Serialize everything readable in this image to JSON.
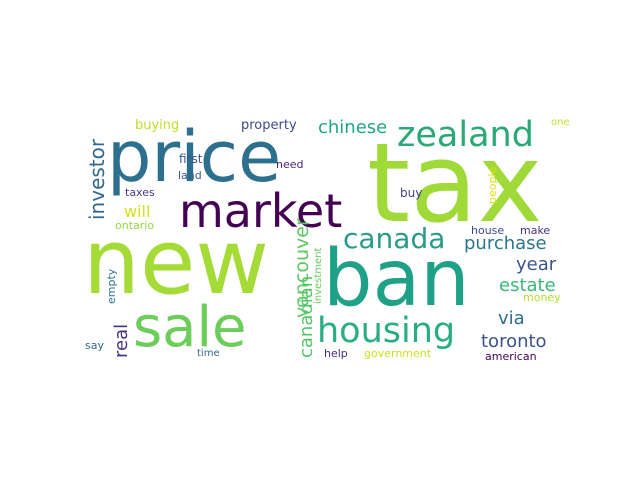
{
  "title": "",
  "words": [
    {
      "text": "tax",
      "color": "#a0da39"
    },
    {
      "text": "new",
      "color": "#a5db36"
    },
    {
      "text": "ban",
      "color": "#1fa187"
    },
    {
      "text": "price",
      "color": "#2d708e"
    },
    {
      "text": "sale",
      "color": "#6ccd5a"
    },
    {
      "text": "market",
      "color": "#440154"
    },
    {
      "text": "zealand",
      "color": "#2aa977"
    },
    {
      "text": "housing",
      "color": "#29af7f"
    },
    {
      "text": "canada",
      "color": "#2a9a8a"
    },
    {
      "text": "chinese",
      "color": "#22a785"
    },
    {
      "text": "investor",
      "color": "#31688e"
    },
    {
      "text": "purchase",
      "color": "#2b758e"
    },
    {
      "text": "year",
      "color": "#39558c"
    },
    {
      "text": "estate",
      "color": "#37b878"
    },
    {
      "text": "via",
      "color": "#2e6e8e"
    },
    {
      "text": "toronto",
      "color": "#3b528b"
    },
    {
      "text": "real",
      "color": "#46337e"
    },
    {
      "text": "vancouver",
      "color": "#5ec962"
    },
    {
      "text": "canadian",
      "color": "#54c568"
    },
    {
      "text": "will",
      "color": "#d2e21b"
    },
    {
      "text": "buying",
      "color": "#bddf26"
    },
    {
      "text": "property",
      "color": "#3e4a89"
    },
    {
      "text": "first",
      "color": "#3a548c"
    },
    {
      "text": "land",
      "color": "#3b5c8c"
    },
    {
      "text": "taxes",
      "color": "#443983"
    },
    {
      "text": "ontario",
      "color": "#90d743"
    },
    {
      "text": "need",
      "color": "#482878"
    },
    {
      "text": "buy",
      "color": "#414487"
    },
    {
      "text": "people",
      "color": "#d8e219"
    },
    {
      "text": "one",
      "color": "#c2df23"
    },
    {
      "text": "empty",
      "color": "#2c728e"
    },
    {
      "text": "investment",
      "color": "#67cc5c"
    },
    {
      "text": "house",
      "color": "#3e4989"
    },
    {
      "text": "make",
      "color": "#46327e"
    },
    {
      "text": "money",
      "color": "#b5de2b"
    },
    {
      "text": "say",
      "color": "#2f6c8e"
    },
    {
      "text": "time",
      "color": "#31688e"
    },
    {
      "text": "help",
      "color": "#472d7b"
    },
    {
      "text": "government",
      "color": "#c8e020"
    },
    {
      "text": "american",
      "color": "#440154"
    }
  ]
}
